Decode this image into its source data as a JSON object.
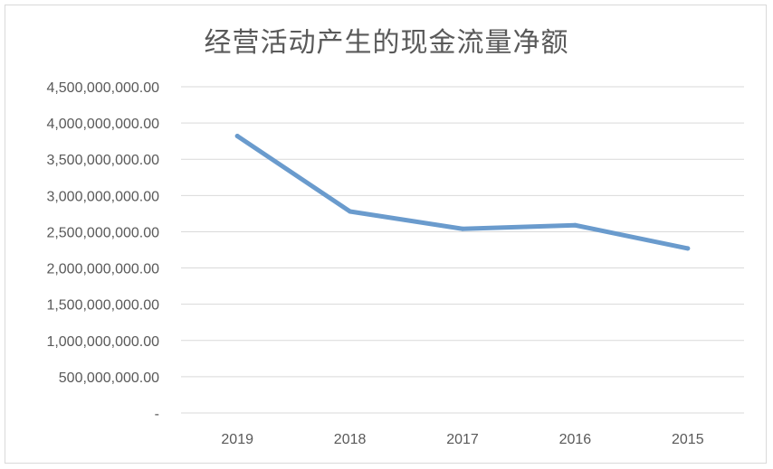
{
  "chart_data": {
    "type": "line",
    "title": "经营活动产生的现金流量净额",
    "xlabel": "",
    "ylabel": "",
    "categories": [
      "2019",
      "2018",
      "2017",
      "2016",
      "2015"
    ],
    "series": [
      {
        "values": [
          3820000000,
          2780000000,
          2540000000,
          2590000000,
          2270000000
        ]
      }
    ],
    "ylim": [
      0,
      4500000000
    ],
    "y_ticks": [
      {
        "value": 0,
        "label": "-"
      },
      {
        "value": 500000000,
        "label": "500,000,000.00"
      },
      {
        "value": 1000000000,
        "label": "1,000,000,000.00"
      },
      {
        "value": 1500000000,
        "label": "1,500,000,000.00"
      },
      {
        "value": 2000000000,
        "label": "2,000,000,000.00"
      },
      {
        "value": 2500000000,
        "label": "2,500,000,000.00"
      },
      {
        "value": 3000000000,
        "label": "3,000,000,000.00"
      },
      {
        "value": 3500000000,
        "label": "3,500,000,000.00"
      },
      {
        "value": 4000000000,
        "label": "4,000,000,000.00"
      },
      {
        "value": 4500000000,
        "label": "4,500,000,000.00"
      }
    ],
    "grid": true,
    "legend": "none",
    "colors": {
      "line": "#6a9bcd"
    }
  }
}
